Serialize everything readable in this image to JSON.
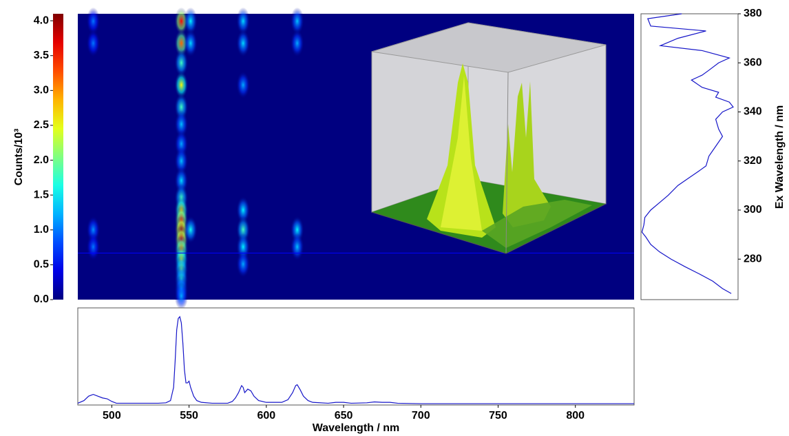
{
  "chart_data": [
    {
      "type": "heatmap",
      "colormap": "jet",
      "colorbar_label": "Counts/10³",
      "zlim": [
        0,
        4.1
      ],
      "zticks": [
        {
          "value": 0,
          "label": "0.0"
        },
        0.5,
        {
          "value": 1,
          "label": "1.0"
        },
        1.5,
        {
          "value": 2,
          "label": "2.0"
        },
        2.5,
        {
          "value": 3,
          "label": "3.0"
        },
        3.5,
        {
          "value": 4,
          "label": "4.0"
        }
      ],
      "xlim": [
        478,
        838
      ],
      "ylim": [
        263.5,
        380
      ],
      "x": [
        545,
        545,
        545,
        545,
        545,
        545,
        545,
        545,
        545,
        545,
        545,
        545,
        545,
        545,
        545,
        545,
        545,
        545,
        545,
        545,
        585,
        585,
        585,
        585,
        585,
        585,
        585,
        620,
        620,
        620,
        620,
        488,
        488,
        488,
        488,
        551,
        551,
        551
      ],
      "y": [
        377,
        368,
        360,
        351,
        342,
        335,
        327,
        320,
        312,
        305,
        300,
        296,
        292,
        288,
        284,
        280,
        276,
        272,
        268,
        265,
        377,
        368,
        351,
        300,
        292,
        285,
        278,
        377,
        368,
        292,
        285,
        377,
        368,
        292,
        285,
        377,
        368,
        292
      ],
      "z": [
        3.6,
        3.2,
        1.8,
        2.6,
        1.8,
        1.3,
        1.2,
        1.3,
        1.4,
        1.8,
        2.8,
        3.4,
        3.9,
        3.7,
        3.0,
        2.4,
        2.0,
        1.7,
        1.4,
        1.2,
        1.4,
        1.4,
        1.2,
        1.5,
        1.8,
        1.5,
        1.2,
        1.3,
        1.2,
        1.5,
        1.3,
        1.0,
        1.0,
        1.1,
        1.0,
        1.5,
        1.4,
        1.6
      ],
      "slice": 282.5,
      "slice_color": "#0000ff"
    },
    {
      "type": "line",
      "orientation": "horizontal",
      "xlabel": "Wavelength / nm",
      "color": "#1414c8",
      "xlim": [
        478,
        838
      ],
      "xticks": [
        500,
        550,
        600,
        650,
        700,
        750,
        800
      ],
      "ylim": [
        0,
        1.1
      ],
      "x": [
        478,
        482,
        485,
        488,
        491,
        494,
        497,
        500,
        503,
        510,
        520,
        530,
        535,
        538,
        540,
        541,
        542,
        543,
        544,
        545,
        546,
        547,
        548,
        549,
        550,
        551,
        552,
        553,
        555,
        558,
        565,
        575,
        578,
        580,
        582,
        584,
        585,
        586,
        588,
        590,
        592,
        595,
        600,
        610,
        614,
        617,
        619,
        620,
        622,
        624,
        627,
        630,
        640,
        645,
        650,
        655,
        665,
        670,
        675,
        680,
        685,
        700,
        750,
        800,
        838
      ],
      "values": [
        0.02,
        0.05,
        0.1,
        0.12,
        0.1,
        0.08,
        0.07,
        0.04,
        0.02,
        0.02,
        0.02,
        0.02,
        0.025,
        0.05,
        0.2,
        0.5,
        0.85,
        0.98,
        1.0,
        0.93,
        0.7,
        0.4,
        0.25,
        0.25,
        0.27,
        0.2,
        0.15,
        0.1,
        0.05,
        0.03,
        0.02,
        0.02,
        0.04,
        0.08,
        0.14,
        0.22,
        0.2,
        0.14,
        0.18,
        0.16,
        0.1,
        0.05,
        0.03,
        0.03,
        0.06,
        0.14,
        0.22,
        0.23,
        0.17,
        0.1,
        0.05,
        0.03,
        0.02,
        0.03,
        0.03,
        0.02,
        0.025,
        0.035,
        0.03,
        0.03,
        0.02,
        0.015,
        0.015,
        0.015,
        0.015
      ]
    },
    {
      "type": "line",
      "orientation": "vertical",
      "ylabel": "Ex Wavelength / nm",
      "color": "#1414c8",
      "xlim": [
        0,
        1
      ],
      "ylim": [
        263.5,
        380
      ],
      "yticks": [
        280,
        300,
        320,
        340,
        360,
        380
      ],
      "y": [
        380,
        378,
        375,
        373,
        370,
        367,
        365,
        362,
        360,
        357,
        355,
        353,
        350,
        348,
        346,
        344,
        342,
        340,
        337,
        333,
        330,
        326,
        322,
        318,
        316,
        313,
        310,
        306,
        303,
        300,
        297,
        294,
        291,
        289,
        286,
        283,
        280,
        277,
        274,
        271,
        268,
        266
      ],
      "values": [
        0.42,
        0.07,
        0.1,
        0.67,
        0.38,
        0.2,
        0.63,
        0.91,
        0.8,
        0.7,
        0.63,
        0.52,
        0.63,
        0.8,
        0.77,
        0.91,
        0.95,
        0.84,
        0.77,
        0.8,
        0.84,
        0.77,
        0.7,
        0.67,
        0.6,
        0.49,
        0.38,
        0.28,
        0.19,
        0.1,
        0.04,
        0.03,
        0.01,
        0.05,
        0.1,
        0.19,
        0.31,
        0.45,
        0.6,
        0.74,
        0.84,
        0.93
      ]
    }
  ]
}
